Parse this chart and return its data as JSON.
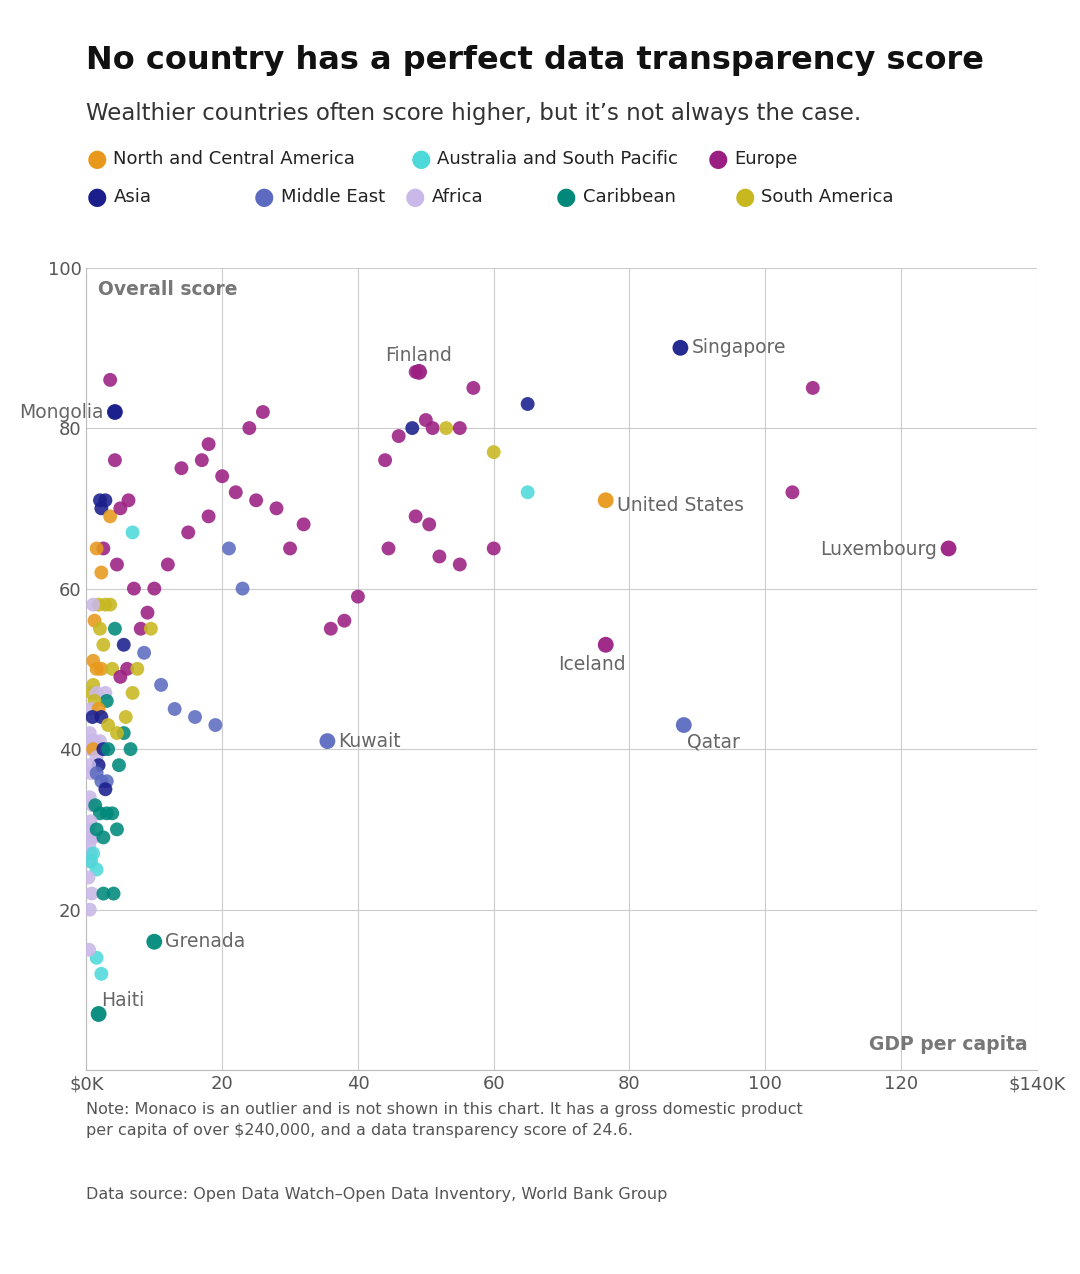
{
  "title": "No country has a perfect data transparency score",
  "subtitle": "Wealthier countries often score higher, but it’s not always the case.",
  "note": "Note: Monaco is an outlier and is not shown in this chart. It has a gross domestic product\nper capita of over $240,000, and a data transparency score of 24.6.",
  "source": "Data source: Open Data Watch–Open Data Inventory, World Bank Group",
  "xlabel": "GDP per capita",
  "ylabel": "Overall score",
  "xlim": [
    0,
    140
  ],
  "ylim": [
    0,
    100
  ],
  "xticks": [
    0,
    20,
    40,
    60,
    80,
    100,
    120,
    140
  ],
  "xtick_labels": [
    "$0K",
    "20",
    "40",
    "60",
    "80",
    "100",
    "120",
    "$140K"
  ],
  "yticks": [
    0,
    20,
    40,
    60,
    80,
    100
  ],
  "regions": {
    "North and Central America": "#E8991C",
    "Australia and South Pacific": "#4DD9D9",
    "Europe": "#9B1F82",
    "Asia": "#1A1F8C",
    "Middle East": "#5C6BC0",
    "Africa": "#C9B8E8",
    "Caribbean": "#00897B",
    "South America": "#C8B820"
  },
  "points": [
    {
      "gdp": 4.2,
      "score": 82,
      "region": "Asia"
    },
    {
      "gdp": 3.5,
      "score": 86,
      "region": "Europe"
    },
    {
      "gdp": 2.0,
      "score": 71,
      "region": "Asia"
    },
    {
      "gdp": 2.8,
      "score": 71,
      "region": "Asia"
    },
    {
      "gdp": 2.2,
      "score": 70,
      "region": "Asia"
    },
    {
      "gdp": 3.5,
      "score": 69,
      "region": "North and Central America"
    },
    {
      "gdp": 5.0,
      "score": 70,
      "region": "Europe"
    },
    {
      "gdp": 6.2,
      "score": 71,
      "region": "Europe"
    },
    {
      "gdp": 2.5,
      "score": 65,
      "region": "Europe"
    },
    {
      "gdp": 4.5,
      "score": 63,
      "region": "Europe"
    },
    {
      "gdp": 1.5,
      "score": 65,
      "region": "North and Central America"
    },
    {
      "gdp": 2.2,
      "score": 62,
      "region": "North and Central America"
    },
    {
      "gdp": 1.8,
      "score": 58,
      "region": "South America"
    },
    {
      "gdp": 2.8,
      "score": 58,
      "region": "South America"
    },
    {
      "gdp": 3.5,
      "score": 58,
      "region": "South America"
    },
    {
      "gdp": 1.0,
      "score": 58,
      "region": "Africa"
    },
    {
      "gdp": 1.2,
      "score": 56,
      "region": "North and Central America"
    },
    {
      "gdp": 2.0,
      "score": 55,
      "region": "South America"
    },
    {
      "gdp": 4.2,
      "score": 55,
      "region": "Caribbean"
    },
    {
      "gdp": 2.5,
      "score": 53,
      "region": "South America"
    },
    {
      "gdp": 5.5,
      "score": 53,
      "region": "Asia"
    },
    {
      "gdp": 1.0,
      "score": 51,
      "region": "North and Central America"
    },
    {
      "gdp": 1.5,
      "score": 50,
      "region": "North and Central America"
    },
    {
      "gdp": 2.2,
      "score": 50,
      "region": "North and Central America"
    },
    {
      "gdp": 3.8,
      "score": 50,
      "region": "South America"
    },
    {
      "gdp": 1.0,
      "score": 48,
      "region": "South America"
    },
    {
      "gdp": 0.8,
      "score": 47,
      "region": "South America"
    },
    {
      "gdp": 1.5,
      "score": 47,
      "region": "Africa"
    },
    {
      "gdp": 2.8,
      "score": 47,
      "region": "Africa"
    },
    {
      "gdp": 3.0,
      "score": 46,
      "region": "Caribbean"
    },
    {
      "gdp": 1.2,
      "score": 46,
      "region": "South America"
    },
    {
      "gdp": 0.7,
      "score": 45,
      "region": "Africa"
    },
    {
      "gdp": 1.8,
      "score": 45,
      "region": "North and Central America"
    },
    {
      "gdp": 2.2,
      "score": 44,
      "region": "Asia"
    },
    {
      "gdp": 0.9,
      "score": 44,
      "region": "Asia"
    },
    {
      "gdp": 0.5,
      "score": 42,
      "region": "Africa"
    },
    {
      "gdp": 0.8,
      "score": 41,
      "region": "Africa"
    },
    {
      "gdp": 1.2,
      "score": 41,
      "region": "Africa"
    },
    {
      "gdp": 2.0,
      "score": 41,
      "region": "Africa"
    },
    {
      "gdp": 0.6,
      "score": 40,
      "region": "Africa"
    },
    {
      "gdp": 1.0,
      "score": 40,
      "region": "North and Central America"
    },
    {
      "gdp": 1.5,
      "score": 39,
      "region": "Africa"
    },
    {
      "gdp": 2.5,
      "score": 40,
      "region": "Asia"
    },
    {
      "gdp": 1.8,
      "score": 38,
      "region": "Asia"
    },
    {
      "gdp": 0.4,
      "score": 38,
      "region": "Africa"
    },
    {
      "gdp": 0.7,
      "score": 37,
      "region": "Africa"
    },
    {
      "gdp": 1.5,
      "score": 37,
      "region": "Middle East"
    },
    {
      "gdp": 2.2,
      "score": 36,
      "region": "Middle East"
    },
    {
      "gdp": 3.0,
      "score": 36,
      "region": "Middle East"
    },
    {
      "gdp": 2.8,
      "score": 35,
      "region": "Asia"
    },
    {
      "gdp": 0.5,
      "score": 34,
      "region": "Africa"
    },
    {
      "gdp": 0.9,
      "score": 33,
      "region": "Africa"
    },
    {
      "gdp": 1.3,
      "score": 33,
      "region": "Caribbean"
    },
    {
      "gdp": 2.0,
      "score": 32,
      "region": "Caribbean"
    },
    {
      "gdp": 3.0,
      "score": 32,
      "region": "Caribbean"
    },
    {
      "gdp": 3.8,
      "score": 32,
      "region": "Caribbean"
    },
    {
      "gdp": 0.6,
      "score": 31,
      "region": "Africa"
    },
    {
      "gdp": 0.3,
      "score": 30,
      "region": "Africa"
    },
    {
      "gdp": 0.8,
      "score": 29,
      "region": "Africa"
    },
    {
      "gdp": 1.0,
      "score": 29,
      "region": "Africa"
    },
    {
      "gdp": 1.5,
      "score": 30,
      "region": "Caribbean"
    },
    {
      "gdp": 2.5,
      "score": 29,
      "region": "Caribbean"
    },
    {
      "gdp": 0.4,
      "score": 28,
      "region": "Africa"
    },
    {
      "gdp": 0.6,
      "score": 27,
      "region": "Africa"
    },
    {
      "gdp": 0.5,
      "score": 26,
      "region": "Africa"
    },
    {
      "gdp": 0.7,
      "score": 26,
      "region": "Australia and South Pacific"
    },
    {
      "gdp": 1.0,
      "score": 27,
      "region": "Australia and South Pacific"
    },
    {
      "gdp": 1.5,
      "score": 25,
      "region": "Australia and South Pacific"
    },
    {
      "gdp": 0.3,
      "score": 24,
      "region": "Africa"
    },
    {
      "gdp": 0.5,
      "score": 20,
      "region": "Africa"
    },
    {
      "gdp": 2.2,
      "score": 12,
      "region": "Australia and South Pacific"
    },
    {
      "gdp": 0.8,
      "score": 22,
      "region": "Africa"
    },
    {
      "gdp": 1.5,
      "score": 14,
      "region": "Australia and South Pacific"
    },
    {
      "gdp": 0.4,
      "score": 15,
      "region": "Africa"
    },
    {
      "gdp": 48.5,
      "score": 87,
      "region": "Europe"
    },
    {
      "gdp": 57.0,
      "score": 85,
      "region": "Europe"
    },
    {
      "gdp": 50.0,
      "score": 81,
      "region": "Europe"
    },
    {
      "gdp": 51.0,
      "score": 80,
      "region": "Europe"
    },
    {
      "gdp": 53.0,
      "score": 80,
      "region": "South America"
    },
    {
      "gdp": 48.0,
      "score": 80,
      "region": "Asia"
    },
    {
      "gdp": 55.0,
      "score": 80,
      "region": "Europe"
    },
    {
      "gdp": 46.0,
      "score": 79,
      "region": "Europe"
    },
    {
      "gdp": 60.0,
      "score": 77,
      "region": "South America"
    },
    {
      "gdp": 44.0,
      "score": 76,
      "region": "Europe"
    },
    {
      "gdp": 65.0,
      "score": 72,
      "region": "Australia and South Pacific"
    },
    {
      "gdp": 48.5,
      "score": 69,
      "region": "Europe"
    },
    {
      "gdp": 50.5,
      "score": 68,
      "region": "Europe"
    },
    {
      "gdp": 44.5,
      "score": 65,
      "region": "Europe"
    },
    {
      "gdp": 52.0,
      "score": 64,
      "region": "Europe"
    },
    {
      "gdp": 55.0,
      "score": 63,
      "region": "Europe"
    },
    {
      "gdp": 40.0,
      "score": 59,
      "region": "Europe"
    },
    {
      "gdp": 38.0,
      "score": 56,
      "region": "Europe"
    },
    {
      "gdp": 36.0,
      "score": 55,
      "region": "Europe"
    },
    {
      "gdp": 30.0,
      "score": 65,
      "region": "Europe"
    },
    {
      "gdp": 32.0,
      "score": 68,
      "region": "Europe"
    },
    {
      "gdp": 28.0,
      "score": 70,
      "region": "Europe"
    },
    {
      "gdp": 25.0,
      "score": 71,
      "region": "Europe"
    },
    {
      "gdp": 20.0,
      "score": 74,
      "region": "Europe"
    },
    {
      "gdp": 22.0,
      "score": 72,
      "region": "Europe"
    },
    {
      "gdp": 18.0,
      "score": 69,
      "region": "Europe"
    },
    {
      "gdp": 15.0,
      "score": 67,
      "region": "Europe"
    },
    {
      "gdp": 12.0,
      "score": 63,
      "region": "Europe"
    },
    {
      "gdp": 10.0,
      "score": 60,
      "region": "Europe"
    },
    {
      "gdp": 8.0,
      "score": 55,
      "region": "Europe"
    },
    {
      "gdp": 6.0,
      "score": 50,
      "region": "Europe"
    },
    {
      "gdp": 5.0,
      "score": 49,
      "region": "Europe"
    },
    {
      "gdp": 9.0,
      "score": 57,
      "region": "Europe"
    },
    {
      "gdp": 26.0,
      "score": 82,
      "region": "Europe"
    },
    {
      "gdp": 24.0,
      "score": 80,
      "region": "Europe"
    },
    {
      "gdp": 17.0,
      "score": 76,
      "region": "Europe"
    },
    {
      "gdp": 14.0,
      "score": 75,
      "region": "Europe"
    },
    {
      "gdp": 8.5,
      "score": 52,
      "region": "Middle East"
    },
    {
      "gdp": 11.0,
      "score": 48,
      "region": "Middle East"
    },
    {
      "gdp": 13.0,
      "score": 45,
      "region": "Middle East"
    },
    {
      "gdp": 16.0,
      "score": 44,
      "region": "Middle East"
    },
    {
      "gdp": 19.0,
      "score": 43,
      "region": "Middle East"
    },
    {
      "gdp": 21.0,
      "score": 65,
      "region": "Middle East"
    },
    {
      "gdp": 23.0,
      "score": 60,
      "region": "Middle East"
    },
    {
      "gdp": 6.5,
      "score": 40,
      "region": "Caribbean"
    },
    {
      "gdp": 5.5,
      "score": 42,
      "region": "Caribbean"
    },
    {
      "gdp": 4.8,
      "score": 38,
      "region": "Caribbean"
    },
    {
      "gdp": 4.5,
      "score": 30,
      "region": "Caribbean"
    },
    {
      "gdp": 9.5,
      "score": 55,
      "region": "South America"
    },
    {
      "gdp": 7.5,
      "score": 50,
      "region": "South America"
    },
    {
      "gdp": 6.8,
      "score": 47,
      "region": "South America"
    },
    {
      "gdp": 5.8,
      "score": 44,
      "region": "South America"
    },
    {
      "gdp": 4.5,
      "score": 42,
      "region": "South America"
    },
    {
      "gdp": 3.2,
      "score": 43,
      "region": "South America"
    },
    {
      "gdp": 107.0,
      "score": 85,
      "region": "Europe"
    },
    {
      "gdp": 104.0,
      "score": 72,
      "region": "Europe"
    },
    {
      "gdp": 60.0,
      "score": 65,
      "region": "Europe"
    },
    {
      "gdp": 65.0,
      "score": 83,
      "region": "Asia"
    },
    {
      "gdp": 18.0,
      "score": 78,
      "region": "Europe"
    },
    {
      "gdp": 4.2,
      "score": 76,
      "region": "Europe"
    },
    {
      "gdp": 7.0,
      "score": 60,
      "region": "Europe"
    },
    {
      "gdp": 6.8,
      "score": 67,
      "region": "Australia and South Pacific"
    },
    {
      "gdp": 3.2,
      "score": 40,
      "region": "Caribbean"
    },
    {
      "gdp": 2.5,
      "score": 22,
      "region": "Caribbean"
    },
    {
      "gdp": 4.0,
      "score": 22,
      "region": "Caribbean"
    }
  ],
  "labeled_points": {
    "Mongolia": {
      "gdp": 4.2,
      "score": 82,
      "region": "Asia",
      "label_ha": "right",
      "label_ox": -8,
      "label_oy": 0
    },
    "Finland": {
      "gdp": 49.0,
      "score": 87,
      "region": "Europe",
      "label_ha": "center",
      "label_ox": 0,
      "label_oy": 12
    },
    "Singapore": {
      "gdp": 87.5,
      "score": 90,
      "region": "Asia",
      "label_ha": "left",
      "label_ox": 8,
      "label_oy": 0
    },
    "United States": {
      "gdp": 76.5,
      "score": 71,
      "region": "North and Central America",
      "label_ha": "left",
      "label_ox": 8,
      "label_oy": -4
    },
    "Kuwait": {
      "gdp": 35.5,
      "score": 41,
      "region": "Middle East",
      "label_ha": "left",
      "label_ox": 8,
      "label_oy": 0
    },
    "Qatar": {
      "gdp": 88.0,
      "score": 43,
      "region": "Middle East",
      "label_ha": "left",
      "label_ox": 2,
      "label_oy": -12
    },
    "Iceland": {
      "gdp": 76.5,
      "score": 53,
      "region": "Europe",
      "label_ha": "center",
      "label_ox": -10,
      "label_oy": -14
    },
    "Luxembourg": {
      "gdp": 127.0,
      "score": 65,
      "region": "Europe",
      "label_ha": "right",
      "label_ox": -8,
      "label_oy": -1
    },
    "Grenada": {
      "gdp": 10.0,
      "score": 16,
      "region": "Caribbean",
      "label_ha": "left",
      "label_ox": 8,
      "label_oy": 0
    },
    "Haiti": {
      "gdp": 1.8,
      "score": 7,
      "region": "Caribbean",
      "label_ha": "left",
      "label_ox": 2,
      "label_oy": 10
    }
  }
}
